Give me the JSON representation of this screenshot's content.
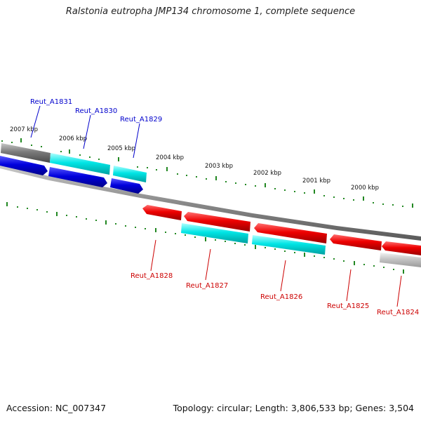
{
  "title": "Ralstonia eutropha JMP134 chromosome 1, complete sequence",
  "footer": {
    "accession": "Accession: NC_007347",
    "summary": "Topology: circular; Length: 3,806,533 bp; Genes: 3,504"
  },
  "scale_labels": [
    "2007 kbp",
    "2006 kbp",
    "2005 kbp",
    "2004 kbp",
    "2003 kbp",
    "2002 kbp",
    "2001 kbp",
    "2000 kbp"
  ],
  "genes_top": [
    "Reut_A1831",
    "Reut_A1830",
    "Reut_A1829"
  ],
  "genes_bottom": [
    "Reut_A1828",
    "Reut_A1827",
    "Reut_A1826",
    "Reut_A1825",
    "Reut_A1824"
  ],
  "colors": {
    "forward_label": "#0000cc",
    "reverse_label": "#cc0000",
    "forward_gene": "#0000dd",
    "reverse_gene": "#ee0000",
    "cyan_gene": "#00e5e5",
    "backbone": "#888888",
    "tick": "#228822"
  }
}
